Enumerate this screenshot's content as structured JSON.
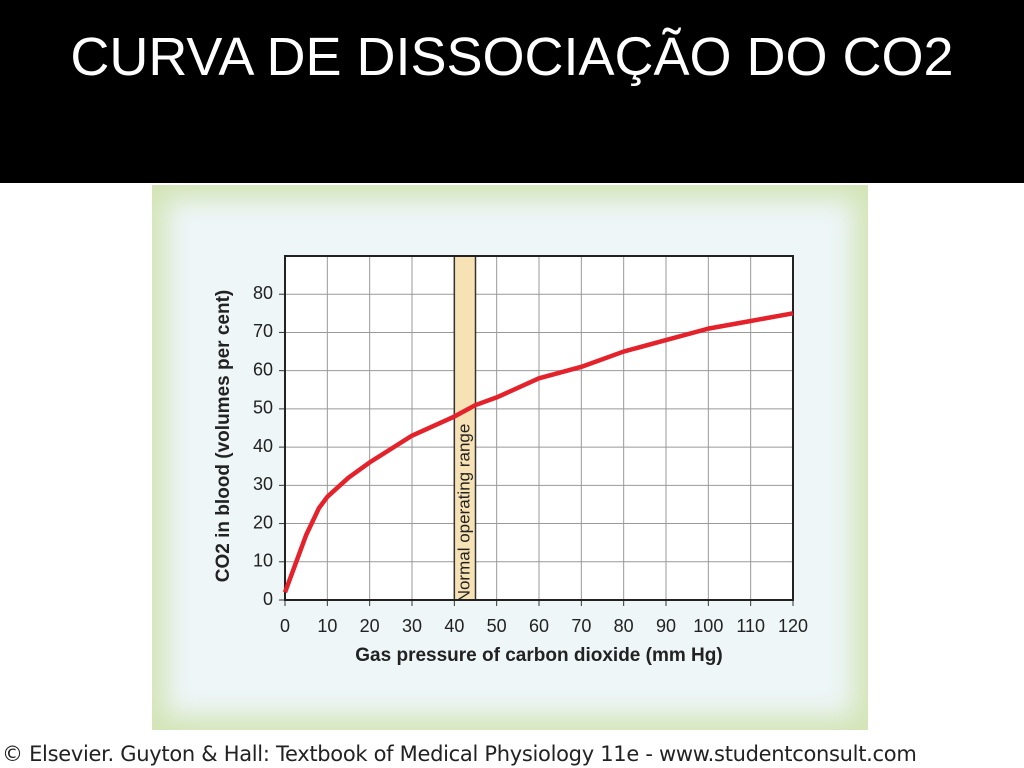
{
  "slide_title": "CURVA DE DISSOCIAÇÃO DO CO2",
  "footer": "© Elsevier. Guyton & Hall: Textbook of Medical Physiology 11e - www.studentconsult.com",
  "chart_data": {
    "type": "line",
    "x_label": "Gas pressure of carbon dioxide (mm Hg)",
    "y_label": "CO2 in blood (volumes per cent)",
    "x": [
      0,
      2,
      5,
      8,
      10,
      15,
      20,
      30,
      40,
      45,
      50,
      60,
      70,
      80,
      90,
      100,
      110,
      120
    ],
    "series": [
      {
        "name": "CO2 dissociation",
        "color": "#e3222b",
        "values": [
          2,
          8,
          17,
          24,
          27,
          32,
          36,
          43,
          48,
          51,
          53,
          58,
          61,
          65,
          68,
          71,
          73,
          75
        ]
      }
    ],
    "band": {
      "range": [
        40,
        45
      ],
      "label": "Normal operating range",
      "color": "#f6e2b5"
    },
    "xlim": [
      0,
      120
    ],
    "xticks": [
      0,
      10,
      20,
      30,
      40,
      50,
      60,
      70,
      80,
      90,
      100,
      110,
      120
    ],
    "ylim": [
      0,
      90
    ],
    "yticks": [
      0,
      10,
      20,
      30,
      40,
      50,
      60,
      70,
      80
    ],
    "grid": true
  }
}
